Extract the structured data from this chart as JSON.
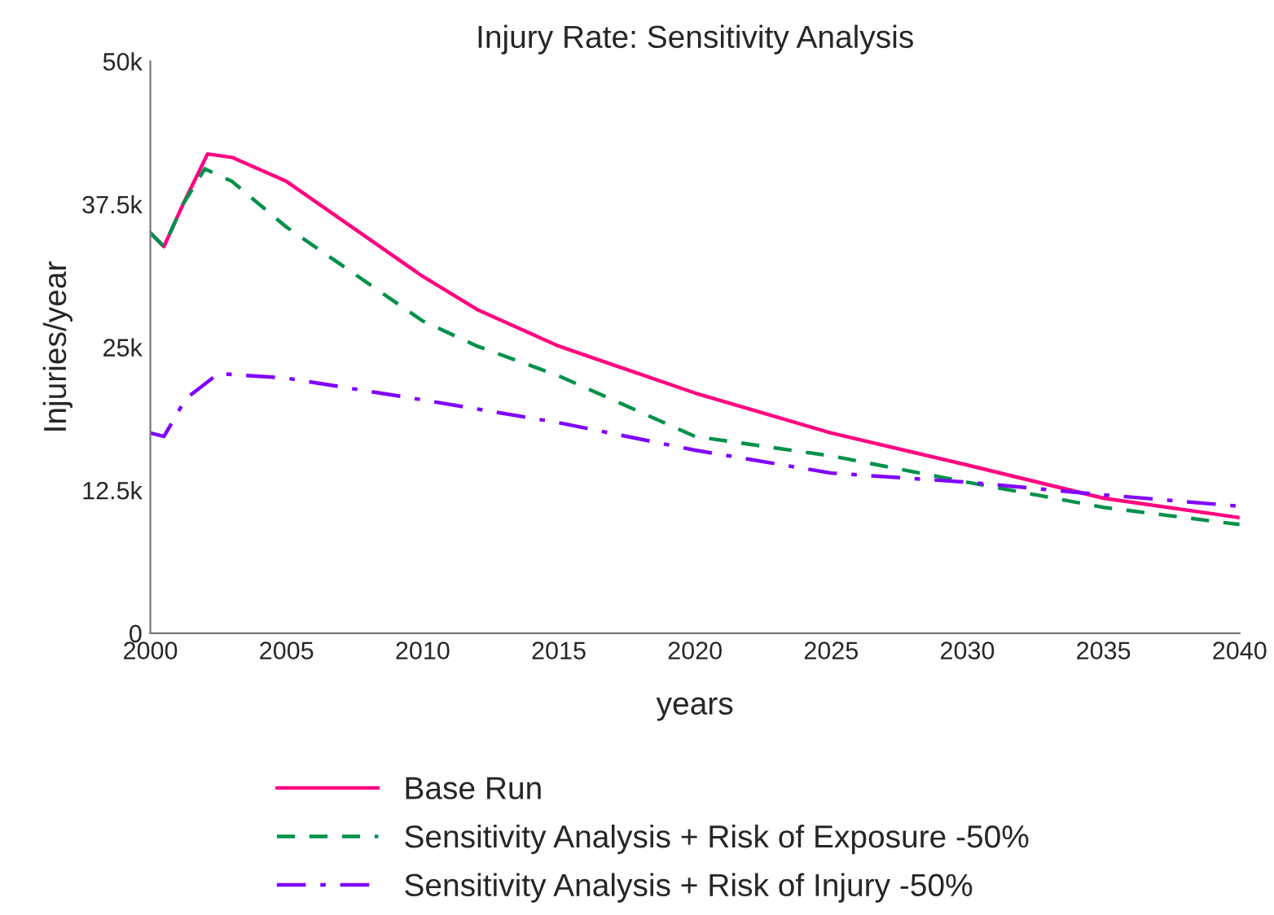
{
  "chart_data": {
    "type": "line",
    "title": "Injury Rate: Sensitivity Analysis",
    "xlabel": "years",
    "ylabel": "Injuries/year",
    "xlim": [
      2000,
      2040
    ],
    "xticks": [
      2000,
      2005,
      2010,
      2015,
      2020,
      2025,
      2030,
      2035,
      2040
    ],
    "ylim": [
      0,
      50000
    ],
    "yticks": [
      {
        "value": 0,
        "label": "0"
      },
      {
        "value": 12500,
        "label": "12.5k"
      },
      {
        "value": 25000,
        "label": "25k"
      },
      {
        "value": 37500,
        "label": "37.5k"
      },
      {
        "value": 50000,
        "label": "50k"
      }
    ],
    "grid": false,
    "legend": "bottom",
    "series": [
      {
        "name": "Base Run",
        "color": "#ff0080",
        "line_style": "solid",
        "x": [
          2000,
          2000.5,
          2001.2,
          2002.1,
          2003,
          2005,
          2010,
          2012,
          2015,
          2020,
          2025,
          2030,
          2035,
          2040
        ],
        "values": [
          35000,
          33800,
          37500,
          41900,
          41600,
          39500,
          31200,
          28300,
          25100,
          21000,
          17500,
          14700,
          11800,
          10100
        ]
      },
      {
        "name": "Sensitivity Analysis + Risk of Exposure -50%",
        "color": "#00914a",
        "line_style": "dashed",
        "x": [
          2000,
          2000.5,
          2001.2,
          2002,
          2003,
          2005,
          2010,
          2012,
          2015,
          2020,
          2025,
          2030,
          2035,
          2040
        ],
        "values": [
          35000,
          33800,
          37500,
          40600,
          39500,
          35500,
          27300,
          25100,
          22500,
          17200,
          15500,
          13200,
          11000,
          9500
        ]
      },
      {
        "name": "Sensitivity Analysis + Risk of Injury -50%",
        "color": "#8000ff",
        "line_style": "dashdot",
        "x": [
          2000,
          2000.5,
          2001.3,
          2002.5,
          2005,
          2010,
          2015,
          2020,
          2025,
          2030,
          2035,
          2040
        ],
        "values": [
          17500,
          17200,
          20500,
          22700,
          22300,
          20400,
          18400,
          16000,
          14000,
          13200,
          12100,
          11100
        ]
      }
    ]
  }
}
